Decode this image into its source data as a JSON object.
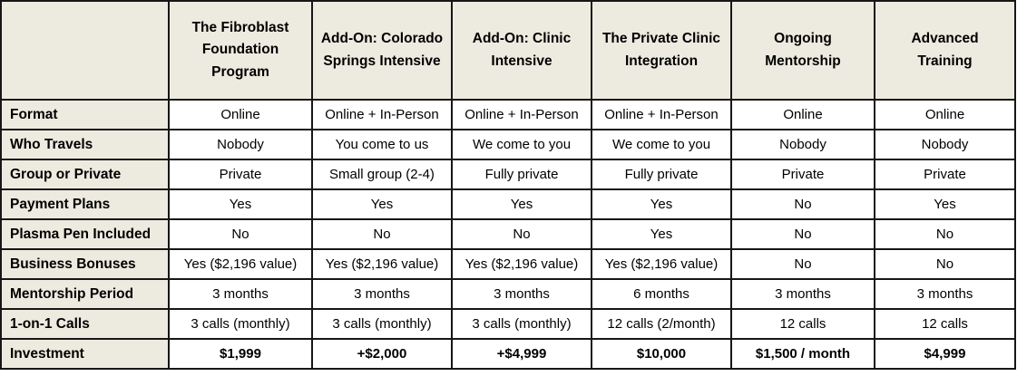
{
  "colors": {
    "header_bg": "#edebe0",
    "cell_bg": "#ffffff",
    "border": "#161616",
    "text": "#000000"
  },
  "table": {
    "columns": [
      "The Fibroblast Foundation Program",
      "Add-On: Colorado Springs Intensive",
      "Add-On: Clinic Intensive",
      "The Private Clinic Integration",
      "Ongoing Mentorship",
      "Advanced Training"
    ],
    "rows": [
      {
        "label": "Format",
        "values": [
          "Online",
          "Online + In-Person",
          "Online + In-Person",
          "Online + In-Person",
          "Online",
          "Online"
        ],
        "bold": false
      },
      {
        "label": "Who Travels",
        "values": [
          "Nobody",
          "You come to us",
          "We come to you",
          "We come to you",
          "Nobody",
          "Nobody"
        ],
        "bold": false
      },
      {
        "label": "Group or Private",
        "values": [
          "Private",
          "Small group (2-4)",
          "Fully private",
          "Fully private",
          "Private",
          "Private"
        ],
        "bold": false
      },
      {
        "label": "Payment Plans",
        "values": [
          "Yes",
          "Yes",
          "Yes",
          "Yes",
          "No",
          "Yes"
        ],
        "bold": false
      },
      {
        "label": "Plasma Pen Included",
        "values": [
          "No",
          "No",
          "No",
          "Yes",
          "No",
          "No"
        ],
        "bold": false
      },
      {
        "label": "Business Bonuses",
        "values": [
          "Yes ($2,196 value)",
          "Yes ($2,196 value)",
          "Yes ($2,196 value)",
          "Yes ($2,196 value)",
          "No",
          "No"
        ],
        "bold": false
      },
      {
        "label": "Mentorship Period",
        "values": [
          "3 months",
          "3 months",
          "3 months",
          "6 months",
          "3 months",
          "3 months"
        ],
        "bold": false
      },
      {
        "label": "1-on-1 Calls",
        "values": [
          "3 calls (monthly)",
          "3 calls (monthly)",
          "3 calls (monthly)",
          "12 calls (2/month)",
          "12 calls",
          "12 calls"
        ],
        "bold": false
      },
      {
        "label": "Investment",
        "values": [
          "$1,999",
          "+$2,000",
          "+$4,999",
          "$10,000",
          "$1,500 / month",
          "$4,999"
        ],
        "bold": true
      }
    ]
  }
}
